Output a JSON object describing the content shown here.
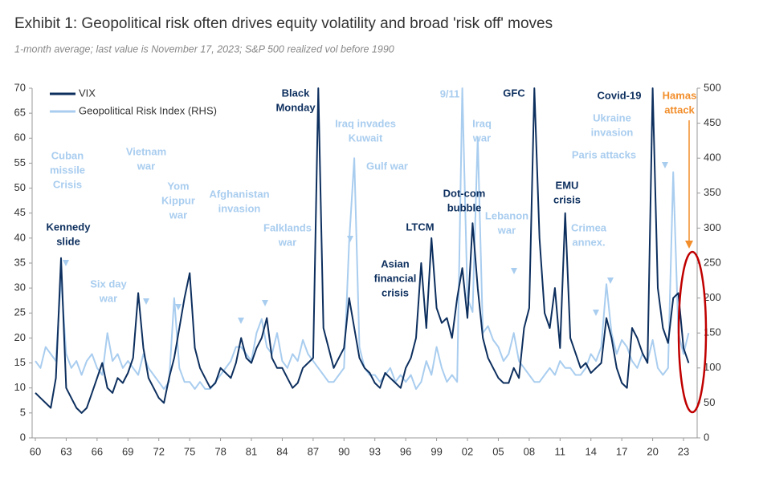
{
  "chart_data": {
    "type": "line",
    "title": "Exhibit 1: Geopolitical risk often drives equity volatility and broad 'risk off' moves",
    "subtitle": "1-month average; last value is November 17, 2023; S&P 500 realized vol before 1990",
    "categories": [
      "60",
      null,
      null,
      null,
      null,
      null,
      "63",
      null,
      null,
      null,
      null,
      null,
      "66",
      null,
      null,
      null,
      null,
      null,
      "69",
      null,
      null,
      null,
      null,
      null,
      "72",
      null,
      null,
      null,
      null,
      null,
      "75",
      null,
      null,
      null,
      null,
      null,
      "78",
      null,
      null,
      null,
      null,
      null,
      "81",
      null,
      null,
      null,
      null,
      null,
      "84",
      null,
      null,
      null,
      null,
      null,
      "87",
      null,
      null,
      null,
      null,
      null,
      "90",
      null,
      null,
      null,
      null,
      null,
      "93",
      null,
      null,
      null,
      null,
      null,
      "96",
      null,
      null,
      null,
      null,
      null,
      "99",
      null,
      null,
      null,
      null,
      null,
      "02",
      null,
      null,
      null,
      null,
      null,
      "05",
      null,
      null,
      null,
      null,
      null,
      "08",
      null,
      null,
      null,
      null,
      null,
      "11",
      null,
      null,
      null,
      null,
      null,
      "14",
      null,
      null,
      null,
      null,
      null,
      "17",
      null,
      null,
      null,
      null,
      null,
      "20",
      null,
      null,
      null,
      null,
      null,
      "23",
      null
    ],
    "series": [
      {
        "name": "VIX",
        "color": "#0d2f5e",
        "values": [
          9,
          8,
          7,
          6,
          12,
          36,
          10,
          8,
          6,
          5,
          6,
          9,
          12,
          15,
          10,
          9,
          12,
          11,
          13,
          16,
          29,
          18,
          12,
          10,
          8,
          7,
          12,
          16,
          22,
          28,
          33,
          18,
          14,
          12,
          10,
          11,
          14,
          13,
          12,
          15,
          20,
          16,
          15,
          18,
          20,
          24,
          16,
          14,
          14,
          12,
          10,
          11,
          14,
          15,
          16,
          70,
          22,
          18,
          14,
          16,
          18,
          28,
          22,
          16,
          14,
          13,
          11,
          10,
          13,
          12,
          11,
          10,
          14,
          16,
          20,
          35,
          22,
          40,
          26,
          23,
          24,
          20,
          28,
          34,
          24,
          43,
          30,
          20,
          16,
          14,
          12,
          11,
          11,
          14,
          12,
          22,
          26,
          70,
          40,
          25,
          22,
          30,
          18,
          45,
          20,
          17,
          14,
          15,
          13,
          14,
          15,
          24,
          20,
          14,
          11,
          10,
          22,
          20,
          17,
          15,
          70,
          30,
          22,
          19,
          28,
          29,
          18,
          15
        ]
      },
      {
        "name": "Geopolitical Risk Index (RHS)",
        "color": "#a9cdef",
        "axis": "y2",
        "values": [
          110,
          100,
          130,
          120,
          110,
          230,
          120,
          100,
          110,
          90,
          110,
          120,
          100,
          90,
          150,
          110,
          120,
          100,
          110,
          100,
          90,
          120,
          100,
          90,
          80,
          70,
          80,
          200,
          100,
          80,
          80,
          70,
          80,
          70,
          70,
          80,
          90,
          100,
          110,
          130,
          130,
          120,
          110,
          150,
          170,
          130,
          120,
          150,
          110,
          100,
          120,
          110,
          140,
          120,
          110,
          100,
          90,
          80,
          80,
          90,
          100,
          280,
          400,
          130,
          100,
          90,
          90,
          80,
          90,
          100,
          80,
          90,
          80,
          90,
          70,
          80,
          110,
          90,
          130,
          100,
          80,
          90,
          80,
          500,
          200,
          180,
          430,
          150,
          160,
          140,
          130,
          110,
          120,
          150,
          110,
          100,
          90,
          80,
          80,
          90,
          100,
          90,
          110,
          100,
          100,
          90,
          90,
          100,
          120,
          110,
          130,
          220,
          150,
          120,
          140,
          130,
          110,
          100,
          120,
          110,
          140,
          100,
          90,
          100,
          380,
          150,
          120,
          150
        ]
      }
    ],
    "ylim": [
      0,
      70
    ],
    "yticks": [
      0,
      5,
      10,
      15,
      20,
      25,
      30,
      35,
      40,
      45,
      50,
      55,
      60,
      65,
      70
    ],
    "y2lim": [
      0,
      500
    ],
    "y2ticks": [
      0,
      50,
      100,
      150,
      200,
      250,
      300,
      350,
      400,
      450,
      500
    ],
    "legend": "top-left",
    "annotations": [
      {
        "lines": [
          "Cuban",
          "missile",
          "Crisis"
        ],
        "style": "light"
      },
      {
        "lines": [
          "Kennedy",
          "slide"
        ],
        "style": "dark"
      },
      {
        "lines": [
          "Six day",
          "war"
        ],
        "style": "light"
      },
      {
        "lines": [
          "Vietnam",
          "war"
        ],
        "style": "light"
      },
      {
        "lines": [
          "Yom",
          "Kippur",
          "war"
        ],
        "style": "light"
      },
      {
        "lines": [
          "Afghanistan",
          "invasion"
        ],
        "style": "light"
      },
      {
        "lines": [
          "Falklands",
          "war"
        ],
        "style": "light"
      },
      {
        "lines": [
          "Black",
          "Monday"
        ],
        "style": "dark"
      },
      {
        "lines": [
          "Iraq invades",
          "Kuwait"
        ],
        "style": "light"
      },
      {
        "lines": [
          "Gulf war"
        ],
        "style": "light"
      },
      {
        "lines": [
          "9/11"
        ],
        "style": "light"
      },
      {
        "lines": [
          "LTCM"
        ],
        "style": "dark"
      },
      {
        "lines": [
          "Asian",
          "financial",
          "crisis"
        ],
        "style": "dark"
      },
      {
        "lines": [
          "Dot-com",
          "bubble"
        ],
        "style": "dark"
      },
      {
        "lines": [
          "Iraq",
          "war"
        ],
        "style": "light"
      },
      {
        "lines": [
          "Lebanon",
          "war"
        ],
        "style": "light"
      },
      {
        "lines": [
          "GFC"
        ],
        "style": "dark"
      },
      {
        "lines": [
          "EMU",
          "crisis"
        ],
        "style": "dark"
      },
      {
        "lines": [
          "Crimea",
          "annex."
        ],
        "style": "light"
      },
      {
        "lines": [
          "Paris attacks"
        ],
        "style": "light"
      },
      {
        "lines": [
          "Ukraine",
          "invasion"
        ],
        "style": "light"
      },
      {
        "lines": [
          "Covid-19"
        ],
        "style": "dark"
      },
      {
        "lines": [
          "Hamas",
          "attack"
        ],
        "style": "orange"
      }
    ]
  }
}
